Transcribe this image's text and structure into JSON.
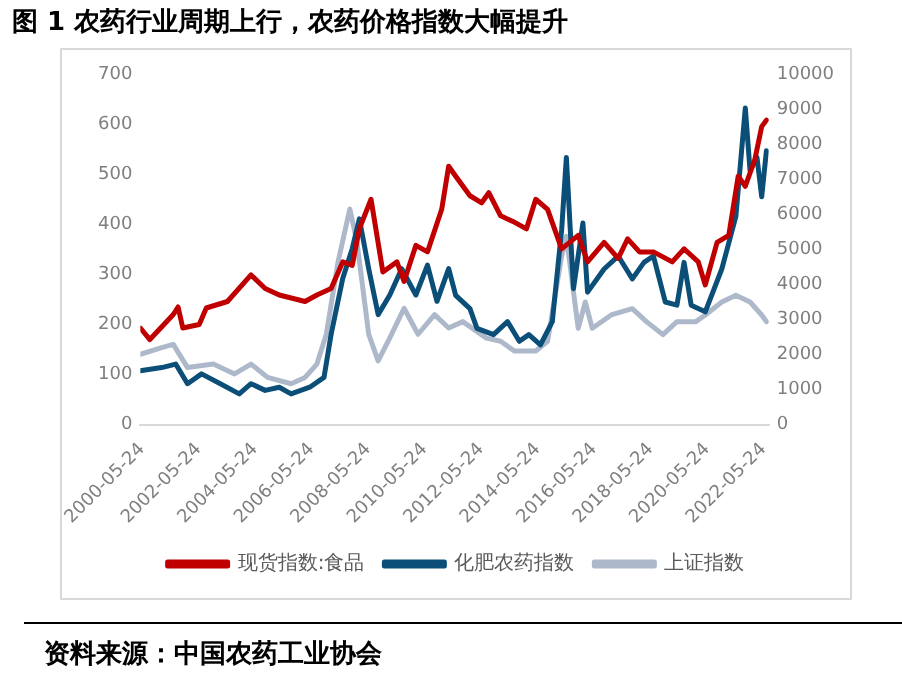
{
  "chart_data": {
    "type": "line",
    "title": "图 1  农药行业周期上行，农药价格指数大幅提升",
    "annotations": [
      "资料来源：中国农药工业协会"
    ],
    "xlim": [
      "2000-05-01",
      "2022-07-31"
    ],
    "xticks": [
      "2000-05-24",
      "2002-05-24",
      "2004-05-24",
      "2006-05-24",
      "2008-05-24",
      "2010-05-24",
      "2012-05-24",
      "2014-05-24",
      "2016-05-24",
      "2018-05-24",
      "2020-05-24",
      "2022-05-24"
    ],
    "ylim": [
      0,
      700
    ],
    "yticks": [
      0,
      100,
      200,
      300,
      400,
      500,
      600,
      700
    ],
    "y2lim": [
      0,
      10000
    ],
    "y2ticks": [
      0,
      1000,
      2000,
      3000,
      4000,
      5000,
      6000,
      7000,
      8000,
      9000,
      10000
    ],
    "grid": false,
    "legend": "bottom",
    "marker": "none",
    "line_style": "solid",
    "series": [
      {
        "name": "现货指数:食品",
        "color": "#c00000",
        "x": [
          "2000-05",
          "2000-09",
          "2001-07",
          "2001-09",
          "2001-11",
          "2002-06",
          "2002-09",
          "2003-06",
          "2004-04",
          "2004-10",
          "2005-04",
          "2006-03",
          "2006-08",
          "2007-02",
          "2007-07",
          "2007-11",
          "2008-02",
          "2008-07",
          "2008-12",
          "2009-06",
          "2009-09",
          "2010-02",
          "2010-07",
          "2011-01",
          "2011-04",
          "2011-07",
          "2012-01",
          "2012-06",
          "2012-09",
          "2013-02",
          "2013-08",
          "2014-01",
          "2014-05",
          "2014-10",
          "2015-04",
          "2015-11",
          "2016-03",
          "2016-10",
          "2017-04",
          "2017-08",
          "2018-01",
          "2018-07",
          "2019-03",
          "2019-08",
          "2020-02",
          "2020-05",
          "2020-10",
          "2021-03",
          "2021-07",
          "2021-10",
          "2022-02",
          "2022-05",
          "2022-07"
        ],
        "values": [
          193,
          170,
          220,
          235,
          193,
          200,
          233,
          246,
          299,
          272,
          259,
          246,
          259,
          272,
          325,
          318,
          391,
          450,
          305,
          325,
          286,
          358,
          345,
          430,
          516,
          496,
          457,
          443,
          463,
          417,
          404,
          391,
          450,
          430,
          351,
          378,
          325,
          364,
          332,
          371,
          345,
          345,
          325,
          351,
          325,
          279,
          364,
          378,
          496,
          476,
          529,
          595,
          608
        ]
      },
      {
        "name": "化肥农药指数",
        "color": "#0b4f78",
        "axis": "y2",
        "x": [
          "2000-05",
          "2001-02",
          "2001-08",
          "2002-01",
          "2002-07",
          "2003-03",
          "2003-11",
          "2004-04",
          "2004-10",
          "2005-04",
          "2005-09",
          "2006-05",
          "2006-11",
          "2007-02",
          "2007-07",
          "2007-11",
          "2008-02",
          "2008-06",
          "2008-10",
          "2009-03",
          "2009-08",
          "2010-02",
          "2010-07",
          "2010-11",
          "2011-04",
          "2011-07",
          "2012-01",
          "2012-04",
          "2012-11",
          "2013-05",
          "2013-10",
          "2014-02",
          "2014-07",
          "2014-12",
          "2015-04",
          "2015-06",
          "2015-09",
          "2016-01",
          "2016-03",
          "2016-10",
          "2017-04",
          "2017-10",
          "2018-03",
          "2018-07",
          "2018-12",
          "2019-05",
          "2019-08",
          "2019-11",
          "2020-05",
          "2020-12",
          "2021-06",
          "2021-10",
          "2021-12",
          "2022-03",
          "2022-05",
          "2022-07"
        ],
        "values": [
          1540,
          1630,
          1730,
          1170,
          1450,
          1170,
          880,
          1170,
          980,
          1070,
          880,
          1070,
          1350,
          2580,
          4170,
          5020,
          5870,
          4450,
          3140,
          3700,
          4450,
          3700,
          4550,
          3520,
          4450,
          3690,
          3310,
          2750,
          2570,
          2940,
          2380,
          2570,
          2280,
          2940,
          5560,
          7620,
          3880,
          5750,
          3780,
          4440,
          4810,
          4160,
          4630,
          4810,
          3500,
          3410,
          4630,
          3410,
          3220,
          4440,
          5940,
          9030,
          7250,
          7620,
          6500,
          7810
        ]
      },
      {
        "name": "上证指数",
        "color": "#adb9ca",
        "axis": "y2",
        "x": [
          "2000-05",
          "2001-02",
          "2001-07",
          "2002-01",
          "2002-12",
          "2003-09",
          "2004-04",
          "2004-11",
          "2005-09",
          "2006-03",
          "2006-08",
          "2006-12",
          "2007-05",
          "2007-10",
          "2008-01",
          "2008-06",
          "2008-10",
          "2009-03",
          "2009-09",
          "2010-03",
          "2010-10",
          "2011-04",
          "2011-10",
          "2012-08",
          "2013-02",
          "2013-08",
          "2014-05",
          "2014-10",
          "2015-04",
          "2015-06",
          "2015-11",
          "2016-02",
          "2016-05",
          "2017-01",
          "2017-10",
          "2018-04",
          "2018-11",
          "2019-05",
          "2020-01",
          "2020-05",
          "2020-12",
          "2021-06",
          "2021-12",
          "2022-05",
          "2022-07"
        ],
        "values": [
          2010,
          2200,
          2290,
          1630,
          1730,
          1450,
          1730,
          1350,
          1170,
          1350,
          1730,
          2580,
          4640,
          6150,
          5210,
          2580,
          1820,
          2480,
          3320,
          2580,
          3140,
          2760,
          2940,
          2470,
          2380,
          2100,
          2100,
          2380,
          4810,
          5370,
          2750,
          3500,
          2750,
          3130,
          3310,
          2940,
          2570,
          2940,
          2940,
          3130,
          3500,
          3690,
          3500,
          3130,
          2940
        ]
      }
    ]
  }
}
